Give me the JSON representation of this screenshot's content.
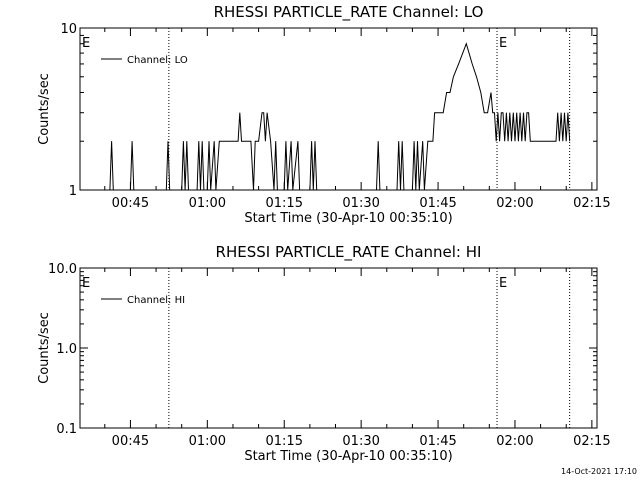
{
  "footer": {
    "timestamp": "14-Oct-2021 17:10"
  },
  "chart_data": [
    {
      "type": "line",
      "title": "RHESSI PARTICLE_RATE Channel: LO",
      "xlabel": "Start Time (30-Apr-10 00:35:10)",
      "ylabel": "Counts/sec",
      "yscale": "log",
      "ylim": [
        1,
        10
      ],
      "xlim": [
        "00:35:10",
        "02:16:00"
      ],
      "x_ticks": [
        "00:45",
        "01:00",
        "01:15",
        "01:30",
        "01:45",
        "02:00",
        "02:15"
      ],
      "y_ticks": [
        "1",
        "10"
      ],
      "legend": "top-left",
      "markers": [
        {
          "label": "E",
          "time": "00:35:10",
          "style": "none"
        },
        {
          "label": "",
          "time": "00:52:30",
          "style": "dotted"
        },
        {
          "label": "E",
          "time": "01:56:30",
          "style": "dotted"
        },
        {
          "label": "",
          "time": "02:10:40",
          "style": "dotted"
        }
      ],
      "series": [
        {
          "name": "Channel: LO",
          "color": "#000000",
          "points": [
            [
              "00:41:00",
              1
            ],
            [
              "00:41:20",
              2
            ],
            [
              "00:41:40",
              1
            ],
            [
              "00:45:00",
              1
            ],
            [
              "00:45:20",
              2
            ],
            [
              "00:45:40",
              1
            ],
            [
              "00:48:30",
              1
            ],
            [
              "00:52:00",
              1
            ],
            [
              "00:52:20",
              2
            ],
            [
              "00:52:40",
              1
            ],
            [
              "00:55:00",
              1
            ],
            [
              "00:55:20",
              2
            ],
            [
              "00:55:40",
              1
            ],
            [
              "00:56:00",
              2
            ],
            [
              "00:56:20",
              1
            ],
            [
              "00:58:00",
              1
            ],
            [
              "00:58:20",
              2
            ],
            [
              "00:58:40",
              1
            ],
            [
              "00:59:00",
              2
            ],
            [
              "00:59:20",
              1
            ],
            [
              "01:00:00",
              1
            ],
            [
              "01:00:20",
              2
            ],
            [
              "01:00:40",
              1
            ],
            [
              "01:01:20",
              2
            ],
            [
              "01:01:40",
              1
            ],
            [
              "01:02:20",
              2
            ],
            [
              "01:06:00",
              2
            ],
            [
              "01:06:20",
              3
            ],
            [
              "01:06:40",
              2
            ],
            [
              "01:08:30",
              2
            ],
            [
              "01:09:00",
              1
            ],
            [
              "01:09:20",
              2
            ],
            [
              "01:10:00",
              2
            ],
            [
              "01:10:40",
              3
            ],
            [
              "01:11:00",
              3
            ],
            [
              "01:11:20",
              2
            ],
            [
              "01:11:40",
              3
            ],
            [
              "01:12:20",
              2
            ],
            [
              "01:13:00",
              1
            ],
            [
              "01:13:20",
              2
            ],
            [
              "01:13:40",
              1
            ],
            [
              "01:15:00",
              1
            ],
            [
              "01:15:20",
              2
            ],
            [
              "01:15:40",
              1
            ],
            [
              "01:16:20",
              2
            ],
            [
              "01:16:40",
              1
            ],
            [
              "01:17:40",
              2
            ],
            [
              "01:18:00",
              1
            ],
            [
              "01:20:00",
              1
            ],
            [
              "01:20:20",
              2
            ],
            [
              "01:20:40",
              1
            ],
            [
              "01:21:00",
              2
            ],
            [
              "01:21:20",
              1
            ],
            [
              "01:22:30",
              1
            ],
            [
              "01:29:00",
              1
            ],
            [
              "01:29:40",
              1
            ],
            [
              "01:30:00",
              1
            ],
            [
              "01:33:00",
              1
            ],
            [
              "01:33:20",
              2
            ],
            [
              "01:33:40",
              1
            ],
            [
              "01:37:00",
              1
            ],
            [
              "01:37:20",
              2
            ],
            [
              "01:37:40",
              1
            ],
            [
              "01:38:00",
              2
            ],
            [
              "01:38:20",
              1
            ],
            [
              "01:40:00",
              1
            ],
            [
              "01:40:20",
              2
            ],
            [
              "01:40:40",
              1
            ],
            [
              "01:41:00",
              2
            ],
            [
              "01:41:20",
              1
            ],
            [
              "01:42:00",
              2
            ],
            [
              "01:42:20",
              1
            ],
            [
              "01:43:00",
              2
            ],
            [
              "01:44:00",
              2
            ],
            [
              "01:44:20",
              3
            ],
            [
              "01:45:00",
              3
            ],
            [
              "01:46:00",
              3
            ],
            [
              "01:46:40",
              4
            ],
            [
              "01:47:20",
              4
            ],
            [
              "01:48:00",
              5
            ],
            [
              "01:49:00",
              6
            ],
            [
              "01:50:30",
              8
            ],
            [
              "01:51:40",
              6
            ],
            [
              "01:52:30",
              5
            ],
            [
              "01:53:20",
              4
            ],
            [
              "01:54:00",
              3
            ],
            [
              "01:54:40",
              3
            ],
            [
              "01:55:20",
              4
            ],
            [
              "01:55:40",
              3
            ],
            [
              "01:56:00",
              3
            ],
            [
              "01:56:20",
              2
            ],
            [
              "01:56:40",
              3
            ],
            [
              "01:57:00",
              2
            ],
            [
              "01:57:20",
              3
            ],
            [
              "01:57:40",
              3
            ],
            [
              "01:58:00",
              2
            ],
            [
              "01:58:20",
              3
            ],
            [
              "01:58:40",
              2
            ],
            [
              "01:59:00",
              3
            ],
            [
              "01:59:20",
              2
            ],
            [
              "01:59:40",
              3
            ],
            [
              "02:00:00",
              2
            ],
            [
              "02:00:20",
              3
            ],
            [
              "02:00:40",
              2
            ],
            [
              "02:01:00",
              3
            ],
            [
              "02:01:20",
              2
            ],
            [
              "02:01:40",
              3
            ],
            [
              "02:02:00",
              2
            ],
            [
              "02:02:20",
              3
            ],
            [
              "02:02:40",
              3
            ],
            [
              "02:03:00",
              2
            ],
            [
              "02:06:00",
              2
            ],
            [
              "02:08:00",
              2
            ],
            [
              "02:08:20",
              3
            ],
            [
              "02:08:40",
              2
            ],
            [
              "02:09:00",
              3
            ],
            [
              "02:09:20",
              2
            ],
            [
              "02:09:40",
              3
            ],
            [
              "02:10:00",
              2
            ],
            [
              "02:10:20",
              3
            ],
            [
              "02:10:40",
              2
            ]
          ]
        }
      ]
    },
    {
      "type": "line",
      "title": "RHESSI PARTICLE_RATE Channel: HI",
      "xlabel": "Start Time (30-Apr-10 00:35:10)",
      "ylabel": "Counts/sec",
      "yscale": "log",
      "ylim": [
        0.1,
        10
      ],
      "xlim": [
        "00:35:10",
        "02:16:00"
      ],
      "x_ticks": [
        "00:45",
        "01:00",
        "01:15",
        "01:30",
        "01:45",
        "02:00",
        "02:15"
      ],
      "y_ticks": [
        "0.1",
        "1.0",
        "10.0"
      ],
      "legend": "top-left",
      "markers": [
        {
          "label": "E",
          "time": "00:35:10",
          "style": "none"
        },
        {
          "label": "",
          "time": "00:52:30",
          "style": "dotted"
        },
        {
          "label": "E",
          "time": "01:56:30",
          "style": "dotted"
        },
        {
          "label": "",
          "time": "02:10:40",
          "style": "dotted"
        }
      ],
      "series": [
        {
          "name": "Channel: HI",
          "color": "#000000",
          "points": []
        }
      ]
    }
  ]
}
